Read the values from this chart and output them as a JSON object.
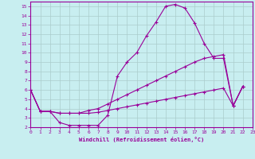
{
  "xlabel": "Windchill (Refroidissement éolien,°C)",
  "bg_color": "#c8eef0",
  "line_color": "#990099",
  "grid_color": "#aacccc",
  "xlim": [
    0,
    23
  ],
  "ylim": [
    2,
    15.5
  ],
  "line1_x": [
    0,
    1,
    2,
    3,
    4,
    5,
    6,
    7,
    8,
    9,
    10,
    11,
    12,
    13,
    14,
    15,
    16,
    17,
    18,
    19,
    20,
    21,
    22
  ],
  "line1_y": [
    6.0,
    3.7,
    3.7,
    2.5,
    2.2,
    2.2,
    2.2,
    2.2,
    3.3,
    7.5,
    9.0,
    10.0,
    11.8,
    13.3,
    15.0,
    15.2,
    14.8,
    13.2,
    11.0,
    9.4,
    9.4,
    4.3,
    6.4
  ],
  "line2_x": [
    0,
    1,
    2,
    3,
    4,
    5,
    6,
    7,
    8,
    9,
    10,
    11,
    12,
    13,
    14,
    15,
    16,
    17,
    18,
    19,
    20,
    21,
    22
  ],
  "line2_y": [
    6.0,
    3.7,
    3.7,
    3.5,
    3.5,
    3.5,
    3.8,
    4.0,
    4.5,
    5.0,
    5.5,
    6.0,
    6.5,
    7.0,
    7.5,
    8.0,
    8.5,
    9.0,
    9.4,
    9.6,
    9.8,
    4.3,
    6.4
  ],
  "line3_x": [
    0,
    1,
    2,
    3,
    4,
    5,
    6,
    7,
    8,
    9,
    10,
    11,
    12,
    13,
    14,
    15,
    16,
    17,
    18,
    19,
    20,
    21,
    22
  ],
  "line3_y": [
    6.0,
    3.7,
    3.7,
    3.5,
    3.5,
    3.5,
    3.5,
    3.6,
    3.8,
    4.0,
    4.2,
    4.4,
    4.6,
    4.8,
    5.0,
    5.2,
    5.4,
    5.6,
    5.8,
    6.0,
    6.2,
    4.3,
    6.4
  ]
}
